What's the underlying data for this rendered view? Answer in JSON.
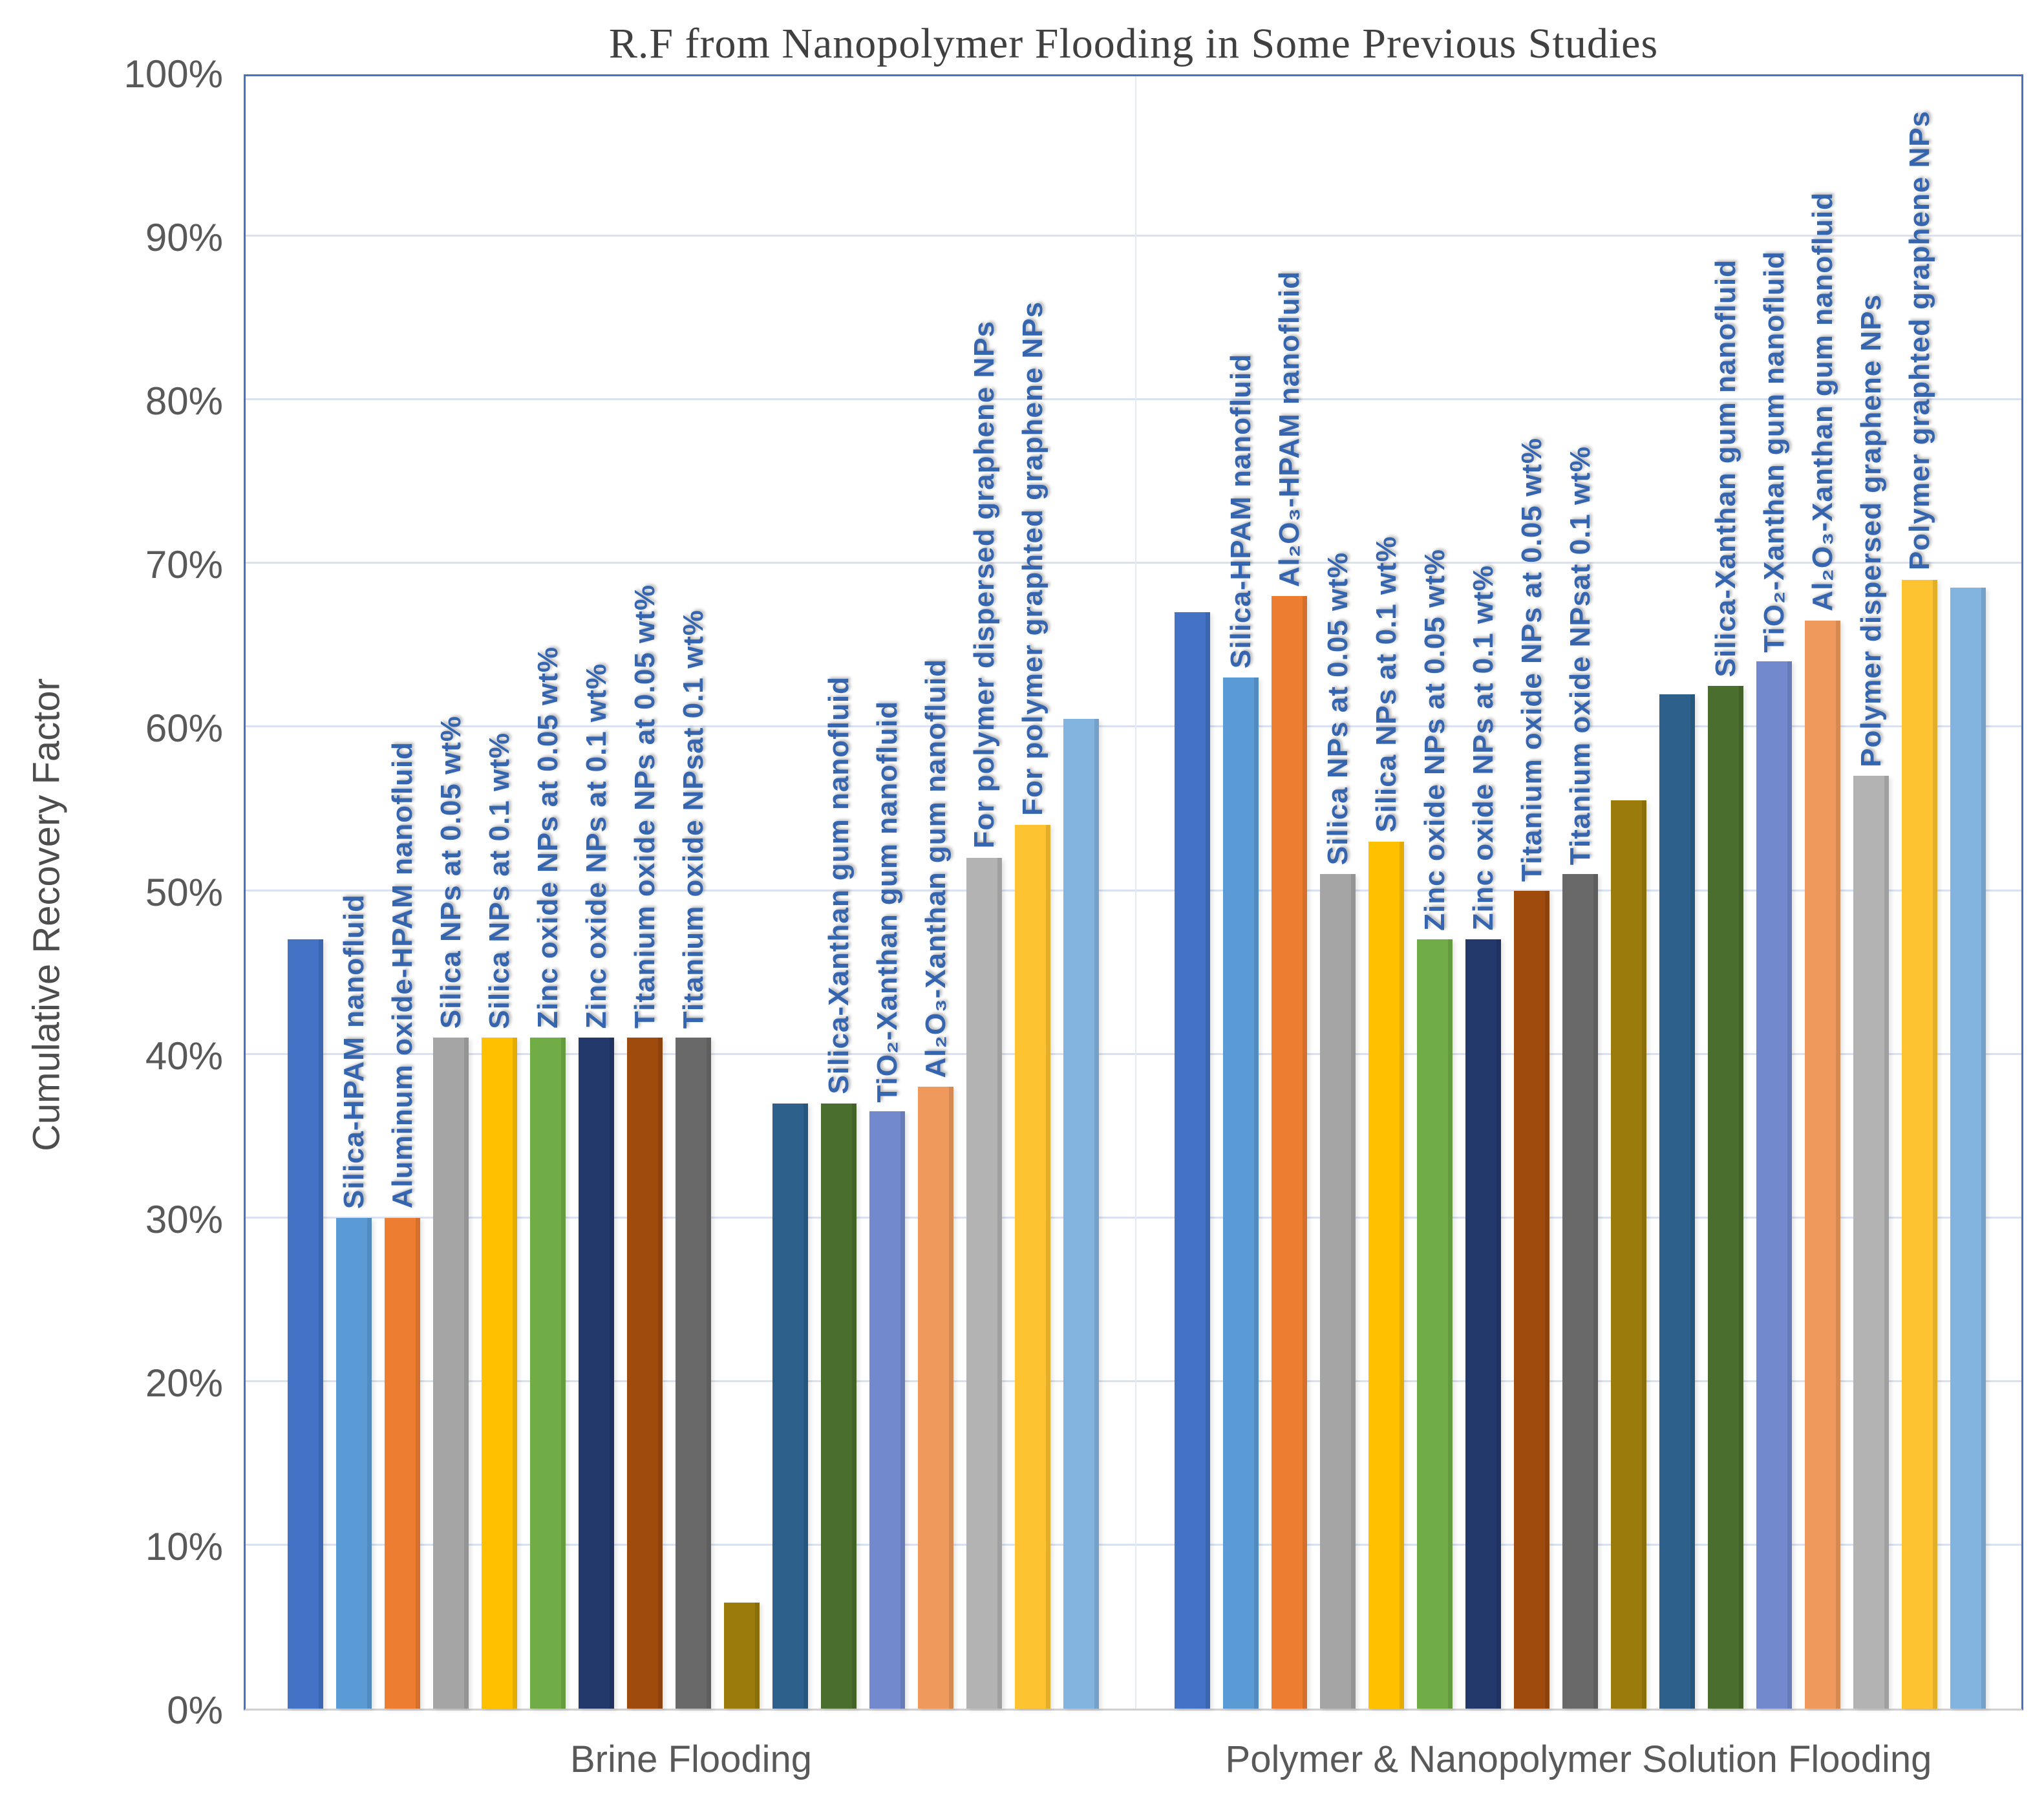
{
  "chart_data": {
    "type": "bar",
    "title": "R.F from Nanopolymer Flooding in Some Previous Studies",
    "xlabel": "",
    "ylabel": "Cumulative Recovery Factor",
    "ylim": [
      0,
      100
    ],
    "ytick_step": 10,
    "yticks": [
      "0%",
      "10%",
      "20%",
      "30%",
      "40%",
      "50%",
      "60%",
      "70%",
      "80%",
      "90%",
      "100%"
    ],
    "grid": "horizontal major gridlines, light blue",
    "legend": "none",
    "bar_label_color": "#3565AF",
    "plot_border_color": "#4472C4",
    "gridline_color": "#D9E1F2",
    "groups": [
      {
        "label": "Brine Flooding",
        "bars": [
          {
            "label": "",
            "value": 47,
            "color": "#4472C4"
          },
          {
            "label": "Silica-HPAM nanofluid",
            "value": 30,
            "color": "#5B9BD5"
          },
          {
            "label": "Aluminum oxide-HPAM nanofluid",
            "value": 30,
            "color": "#ED7D31"
          },
          {
            "label": "Silica NPs at 0.05 wt%",
            "value": 41,
            "color": "#A5A5A5"
          },
          {
            "label": "Silica NPs at 0.1 wt%",
            "value": 41,
            "color": "#FFC000"
          },
          {
            "label": "Zinc oxide NPs at 0.05 wt%",
            "value": 41,
            "color": "#70AD47"
          },
          {
            "label": "Zinc oxide NPs at 0.1 wt%",
            "value": 41,
            "color": "#24396B"
          },
          {
            "label": "Titanium oxide NPs at 0.05 wt%",
            "value": 41,
            "color": "#A04B0E"
          },
          {
            "label": "Titanium oxide NPsat 0.1 wt%",
            "value": 41,
            "color": "#696969"
          },
          {
            "label": "",
            "value": 6.5,
            "color": "#9A7B0B"
          },
          {
            "label": "",
            "value": 37,
            "color": "#2D618C"
          },
          {
            "label": "Silica-Xanthan gum nanofluid",
            "value": 37,
            "color": "#4A6E2D"
          },
          {
            "label": "TiO₂-Xanthan gum nanofluid",
            "value": 36.5,
            "color": "#7289CD"
          },
          {
            "label": "Al₂O₃-Xanthan gum nanofluid",
            "value": 38,
            "color": "#F0995C"
          },
          {
            "label": "For polymer dispersed graphene NPs",
            "value": 52,
            "color": "#B3B3B3"
          },
          {
            "label": "For polymer graphted graphene NPs",
            "value": 54,
            "color": "#FDC330"
          },
          {
            "label": "",
            "value": 60.5,
            "color": "#83B3DF"
          }
        ]
      },
      {
        "label": "Polymer & Nanopolymer Solution Flooding",
        "bars": [
          {
            "label": "",
            "value": 67,
            "color": "#4472C4"
          },
          {
            "label": "Silica-HPAM nanofluid",
            "value": 63,
            "color": "#5B9BD5"
          },
          {
            "label": "Al₂O₃-HPAM nanofluid",
            "value": 68,
            "color": "#ED7D31"
          },
          {
            "label": "Silica NPs at 0.05 wt%",
            "value": 51,
            "color": "#A5A5A5"
          },
          {
            "label": "Silica NPs at 0.1 wt%",
            "value": 53,
            "color": "#FFC000"
          },
          {
            "label": "Zinc oxide NPs at 0.05 wt%",
            "value": 47,
            "color": "#70AD47"
          },
          {
            "label": "Zinc oxide NPs at 0.1 wt%",
            "value": 47,
            "color": "#24396B"
          },
          {
            "label": "Titanium oxide NPs at 0.05 wt%",
            "value": 50,
            "color": "#A04B0E"
          },
          {
            "label": "Titanium oxide NPsat 0.1 wt%",
            "value": 51,
            "color": "#696969"
          },
          {
            "label": "",
            "value": 55.5,
            "color": "#9A7B0B"
          },
          {
            "label": "",
            "value": 62,
            "color": "#2D618C"
          },
          {
            "label": "Silica-Xanthan gum nanofluid",
            "value": 62.5,
            "color": "#4A6E2D"
          },
          {
            "label": "TiO₂-Xanthan gum nanofluid",
            "value": 64,
            "color": "#7289CD"
          },
          {
            "label": "Al₂O₃-Xanthan gum nanofluid",
            "value": 66.5,
            "color": "#F0995C"
          },
          {
            "label": "Polymer dispersed graphene NPs",
            "value": 57,
            "color": "#B3B3B3"
          },
          {
            "label": "Polymer graphted graphene NPs",
            "value": 69,
            "color": "#FDC330"
          },
          {
            "label": "",
            "value": 68.5,
            "color": "#83B3DF"
          }
        ]
      }
    ]
  }
}
